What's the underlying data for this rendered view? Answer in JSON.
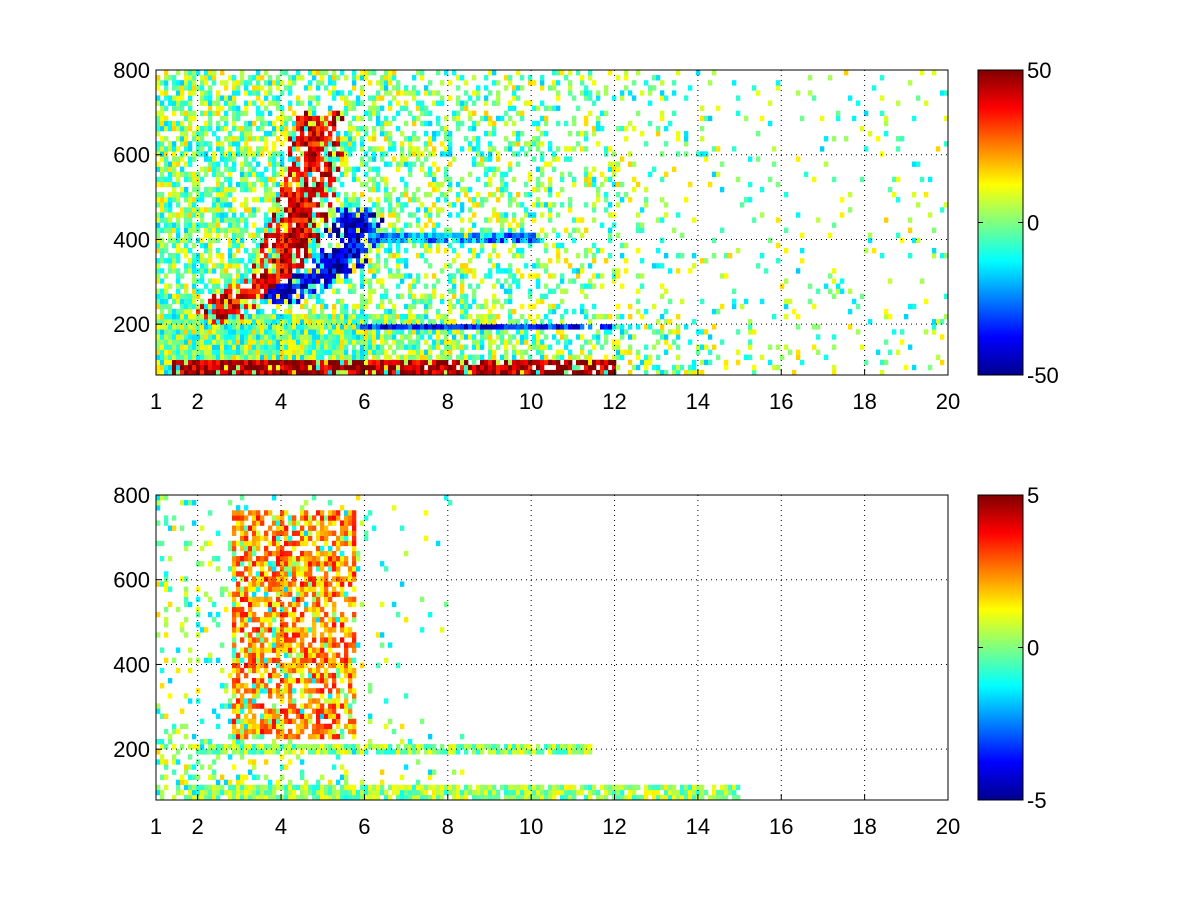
{
  "chart_data": [
    {
      "type": "heatmap",
      "title": "",
      "xlabel": "",
      "ylabel": "",
      "xlim": [
        1,
        20
      ],
      "ylim": [
        80,
        800
      ],
      "x_ticks": [
        1,
        2,
        4,
        6,
        8,
        10,
        12,
        14,
        16,
        18,
        20
      ],
      "x_tick_labels": [
        "1",
        "2",
        "4",
        "6",
        "8",
        "10",
        "12",
        "14",
        "16",
        "18",
        "20"
      ],
      "y_ticks": [
        200,
        400,
        600,
        800
      ],
      "y_tick_labels": [
        "200",
        "400",
        "600",
        "800"
      ],
      "grid": true,
      "colormap": "jet",
      "clim": [
        -50,
        50
      ],
      "colorbar_ticks": [
        50,
        0,
        -50
      ],
      "colorbar_tick_labels": [
        "50",
        "0",
        "-50"
      ],
      "features": [
        {
          "kind": "arc",
          "x": [
            2.6,
            3.0,
            3.4,
            3.7,
            4.0,
            4.3,
            4.6,
            4.8,
            4.9
          ],
          "y": [
            230,
            260,
            280,
            300,
            340,
            410,
            500,
            600,
            680
          ],
          "value": 40
        },
        {
          "kind": "arc",
          "x": [
            3.9,
            4.3,
            4.8,
            5.2,
            5.5,
            5.7,
            5.8
          ],
          "y": [
            270,
            290,
            310,
            330,
            360,
            400,
            450
          ],
          "value": -40
        },
        {
          "kind": "band",
          "x": [
            1.4,
            12.0
          ],
          "y": [
            80,
            110
          ],
          "value": 45
        },
        {
          "kind": "band",
          "x": [
            5.8,
            11.9
          ],
          "y": [
            190,
            205
          ],
          "value": -35
        },
        {
          "kind": "band",
          "x": [
            6.0,
            10.2
          ],
          "y": [
            395,
            410
          ],
          "value": -25
        }
      ]
    },
    {
      "type": "heatmap",
      "title": "",
      "xlabel": "",
      "ylabel": "",
      "xlim": [
        1,
        20
      ],
      "ylim": [
        80,
        800
      ],
      "x_ticks": [
        1,
        2,
        4,
        6,
        8,
        10,
        12,
        14,
        16,
        18,
        20
      ],
      "x_tick_labels": [
        "1",
        "2",
        "4",
        "6",
        "8",
        "10",
        "12",
        "14",
        "16",
        "18",
        "20"
      ],
      "y_ticks": [
        200,
        400,
        600,
        800
      ],
      "y_tick_labels": [
        "200",
        "400",
        "600",
        "800"
      ],
      "grid": true,
      "colormap": "jet",
      "clim": [
        -5,
        5
      ],
      "colorbar_ticks": [
        5,
        0,
        -5
      ],
      "colorbar_tick_labels": [
        "5",
        "0",
        "-5"
      ],
      "features": [
        {
          "kind": "region",
          "x": [
            2.8,
            5.8
          ],
          "y": [
            220,
            760
          ],
          "value": 2.5
        },
        {
          "kind": "band",
          "x": [
            1.8,
            15.0
          ],
          "y": [
            80,
            110
          ],
          "value": 0.2
        },
        {
          "kind": "band",
          "x": [
            2.0,
            11.5
          ],
          "y": [
            190,
            210
          ],
          "value": 0.2
        }
      ]
    }
  ]
}
